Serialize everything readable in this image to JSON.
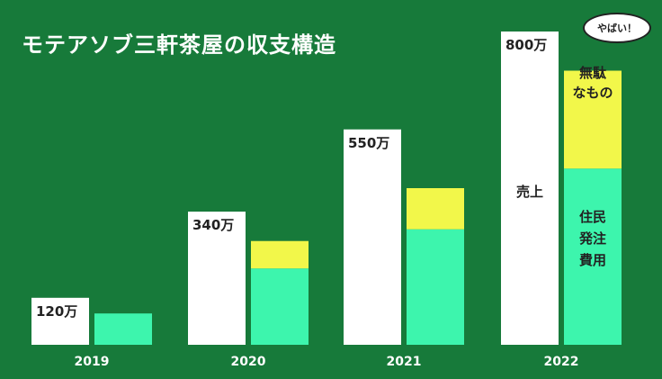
{
  "title": "モテアソブ三軒茶屋の収支構造",
  "chart_data": {
    "type": "bar",
    "categories": [
      "2019",
      "2020",
      "2021",
      "2022"
    ],
    "series": [
      {
        "name": "売上",
        "values": [
          120,
          340,
          550,
          800
        ]
      },
      {
        "name": "住民発注費用",
        "values": [
          80,
          195,
          295,
          450
        ]
      },
      {
        "name": "無駄なもの",
        "values": [
          0,
          70,
          105,
          250
        ]
      }
    ],
    "value_labels": [
      "120万",
      "340万",
      "550万",
      "800万"
    ],
    "ylim": [
      0,
      800
    ],
    "colors": {
      "revenue": "#ffffff",
      "resident_cost": "#3df5ad",
      "waste": "#f2f74a"
    },
    "annotations": {
      "revenue_label": "売上",
      "waste_label": "無駄なもの",
      "cost_label": "住民発注費用",
      "bubble": "やばい！"
    }
  }
}
